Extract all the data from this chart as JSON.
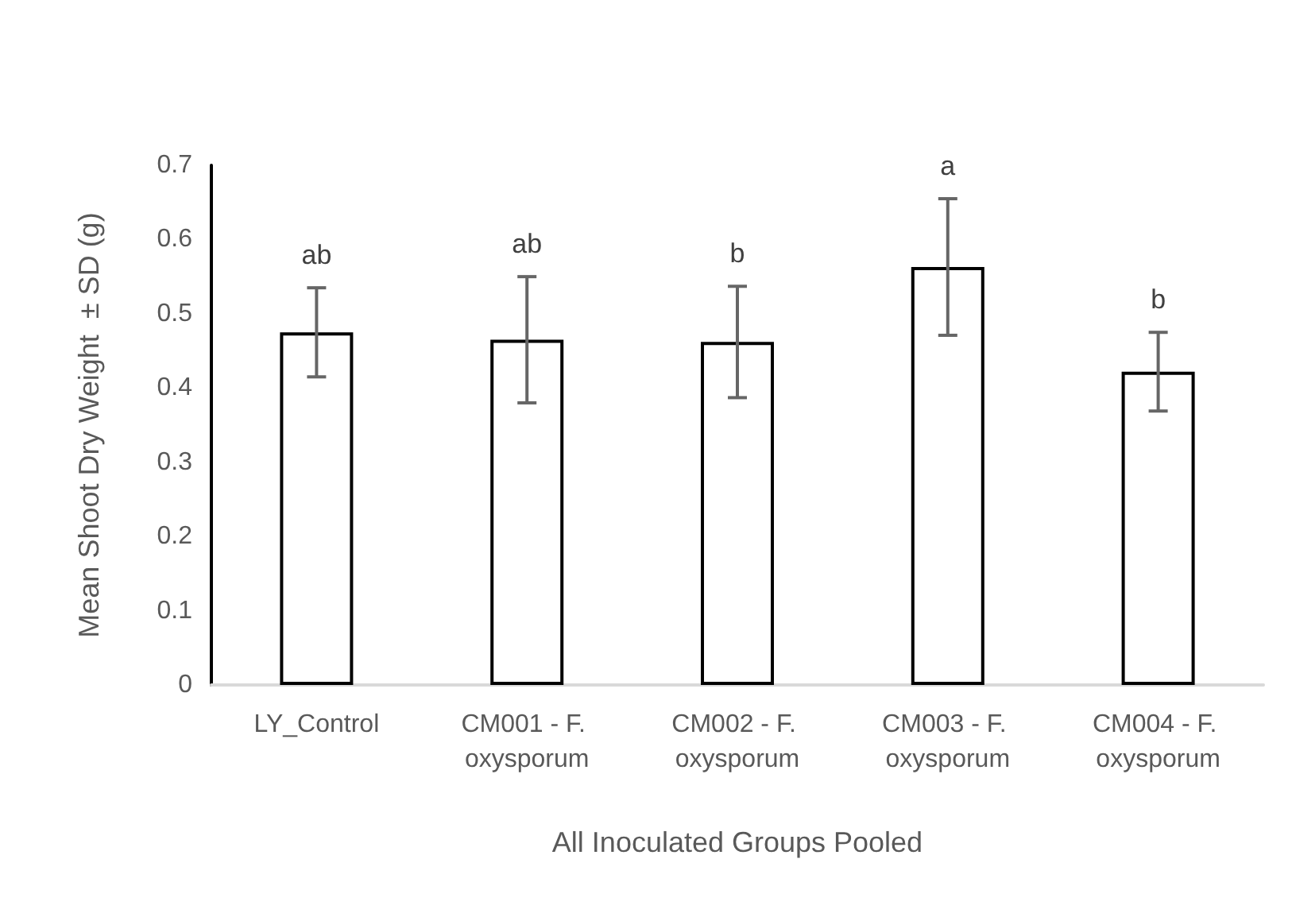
{
  "chart_data": {
    "type": "bar",
    "xlabel": "All Inoculated Groups Pooled",
    "ylabel": "Mean Shoot Dry Weight  ± SD (g)",
    "categories": [
      "LY_Control",
      "CM001 - F. oxysporum",
      "CM002 - F. oxysporum",
      "CM003 - F. oxysporum",
      "CM004 - F. oxysporum"
    ],
    "values": [
      0.475,
      0.465,
      0.462,
      0.563,
      0.422
    ],
    "errors": [
      0.06,
      0.085,
      0.075,
      0.092,
      0.053
    ],
    "color": "#ffffff",
    "ylim": [
      0,
      0.7
    ],
    "yticks": [
      {
        "value": 0,
        "label": "0"
      },
      0.1,
      0.2,
      0.3,
      0.4,
      0.5,
      0.6,
      0.7
    ],
    "grid": false,
    "annotations": [
      "ab",
      "ab",
      "b",
      "a",
      "b"
    ]
  }
}
